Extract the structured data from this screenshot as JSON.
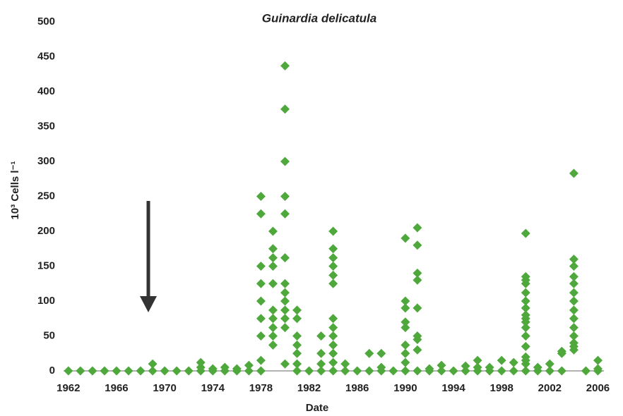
{
  "chart_data": {
    "type": "scatter",
    "title": "Guinardia delicatula",
    "x_label": "Date",
    "y_label": "10³ Cells l⁻¹",
    "color": "#4ea83c",
    "grid": false,
    "xlim": [
      1961.6,
      2006.5
    ],
    "xticks": [
      1962,
      1966,
      1970,
      1974,
      1978,
      1982,
      1986,
      1990,
      1994,
      1998,
      2002,
      2006
    ],
    "ylim": [
      0,
      500
    ],
    "yticks": [
      0,
      50,
      100,
      150,
      200,
      250,
      300,
      350,
      400,
      450,
      500
    ],
    "series": [
      {
        "name": "Guinardia delicatula",
        "x": [
          1962,
          1963,
          1964,
          1965,
          1966,
          1967,
          1968,
          1969,
          1969,
          1970,
          1971,
          1972,
          1973,
          1973,
          1973,
          1974,
          1974,
          1975,
          1975,
          1976,
          1976,
          1977,
          1977,
          1978,
          1978,
          1978,
          1978,
          1978,
          1978,
          1978,
          1978,
          1978,
          1979,
          1979,
          1979,
          1979,
          1979,
          1979,
          1979,
          1979,
          1979,
          1979,
          1980,
          1980,
          1980,
          1980,
          1980,
          1980,
          1980,
          1980,
          1980,
          1980,
          1980,
          1980,
          1980,
          1981,
          1981,
          1981,
          1981,
          1981,
          1981,
          1981,
          1982,
          1983,
          1983,
          1983,
          1983,
          1984,
          1984,
          1984,
          1984,
          1984,
          1984,
          1984,
          1984,
          1984,
          1984,
          1984,
          1984,
          1984,
          1985,
          1985,
          1986,
          1987,
          1987,
          1988,
          1988,
          1988,
          1989,
          1990,
          1990,
          1990,
          1990,
          1990,
          1990,
          1990,
          1990,
          1990,
          1991,
          1991,
          1991,
          1991,
          1991,
          1991,
          1991,
          1991,
          1991,
          1992,
          1992,
          1993,
          1993,
          1994,
          1995,
          1995,
          1996,
          1996,
          1996,
          1997,
          1997,
          1998,
          1998,
          1999,
          1999,
          2000,
          2000,
          2000,
          2000,
          2000,
          2000,
          2000,
          2000,
          2000,
          2000,
          2000,
          2000,
          2000,
          2000,
          2000,
          2000,
          2000,
          2001,
          2001,
          2002,
          2002,
          2003,
          2003,
          2003,
          2004,
          2004,
          2004,
          2004,
          2004,
          2004,
          2004,
          2004,
          2004,
          2004,
          2004,
          2004,
          2004,
          2004,
          2005,
          2006,
          2006,
          2006
        ],
        "values": [
          0,
          0,
          0,
          0,
          0,
          0,
          0,
          0,
          10,
          0,
          0,
          0,
          0,
          5,
          12,
          0,
          3,
          0,
          5,
          0,
          3,
          0,
          8,
          0,
          15,
          50,
          75,
          100,
          125,
          150,
          225,
          250,
          37,
          50,
          62,
          75,
          87,
          125,
          150,
          162,
          175,
          200,
          10,
          62,
          75,
          87,
          100,
          112,
          125,
          162,
          225,
          250,
          300,
          375,
          437,
          0,
          10,
          25,
          37,
          50,
          75,
          87,
          0,
          0,
          10,
          25,
          50,
          0,
          12,
          25,
          37,
          50,
          62,
          75,
          125,
          137,
          150,
          162,
          175,
          200,
          0,
          10,
          0,
          0,
          25,
          0,
          5,
          25,
          0,
          0,
          12,
          25,
          37,
          62,
          70,
          90,
          100,
          190,
          0,
          30,
          45,
          50,
          90,
          130,
          140,
          180,
          205,
          0,
          3,
          0,
          8,
          0,
          0,
          7,
          0,
          5,
          15,
          0,
          5,
          0,
          15,
          0,
          12,
          0,
          10,
          15,
          20,
          35,
          50,
          62,
          70,
          75,
          80,
          90,
          100,
          112,
          125,
          130,
          135,
          197,
          0,
          5,
          0,
          10,
          0,
          25,
          28,
          30,
          35,
          40,
          50,
          62,
          75,
          87,
          100,
          112,
          125,
          135,
          150,
          160,
          283,
          0,
          0,
          3,
          15
        ]
      }
    ]
  }
}
